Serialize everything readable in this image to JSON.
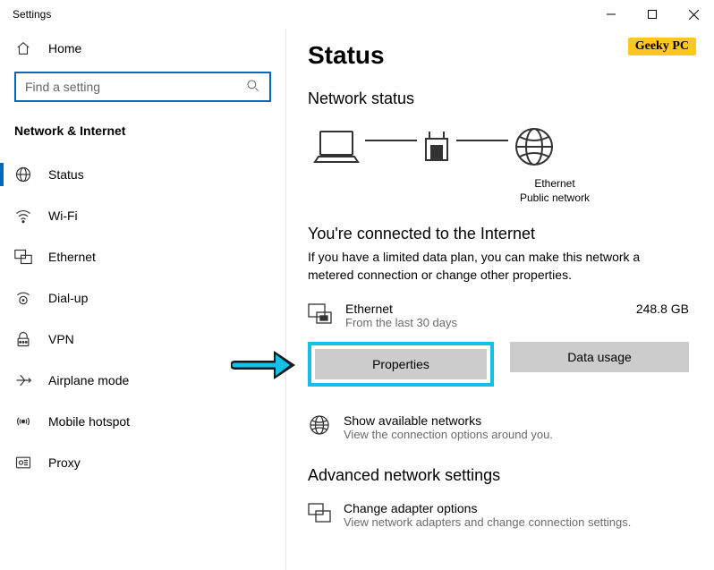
{
  "window": {
    "title": "Settings"
  },
  "sidebar": {
    "home": "Home",
    "searchPlaceholder": "Find a setting",
    "sectionHeader": "Network & Internet",
    "items": [
      {
        "label": "Status",
        "selected": true,
        "icon": "status"
      },
      {
        "label": "Wi-Fi",
        "selected": false,
        "icon": "wifi"
      },
      {
        "label": "Ethernet",
        "selected": false,
        "icon": "ethernet"
      },
      {
        "label": "Dial-up",
        "selected": false,
        "icon": "dialup"
      },
      {
        "label": "VPN",
        "selected": false,
        "icon": "vpn"
      },
      {
        "label": "Airplane mode",
        "selected": false,
        "icon": "airplane"
      },
      {
        "label": "Mobile hotspot",
        "selected": false,
        "icon": "hotspot"
      },
      {
        "label": "Proxy",
        "selected": false,
        "icon": "proxy"
      }
    ]
  },
  "main": {
    "pageTitle": "Status",
    "networkStatus": "Network status",
    "diagram": {
      "adapterLabel": "Ethernet",
      "networkLabel": "Public network"
    },
    "connected": {
      "title": "You're connected to the Internet",
      "body": "If you have a limited data plan, you can make this network a metered connection or change other properties."
    },
    "connection": {
      "name": "Ethernet",
      "period": "From the last 30 days",
      "usage": "248.8 GB"
    },
    "buttons": {
      "properties": "Properties",
      "dataUsage": "Data usage"
    },
    "available": {
      "title": "Show available networks",
      "sub": "View the connection options around you."
    },
    "advanced": {
      "header": "Advanced network settings",
      "adapter": {
        "title": "Change adapter options",
        "sub": "View network adapters and change connection settings."
      }
    }
  },
  "branding": {
    "logo": "Geeky PC"
  },
  "annotation": {
    "highlightColor": "#15bfe6",
    "arrowColor": "#131b1c"
  }
}
